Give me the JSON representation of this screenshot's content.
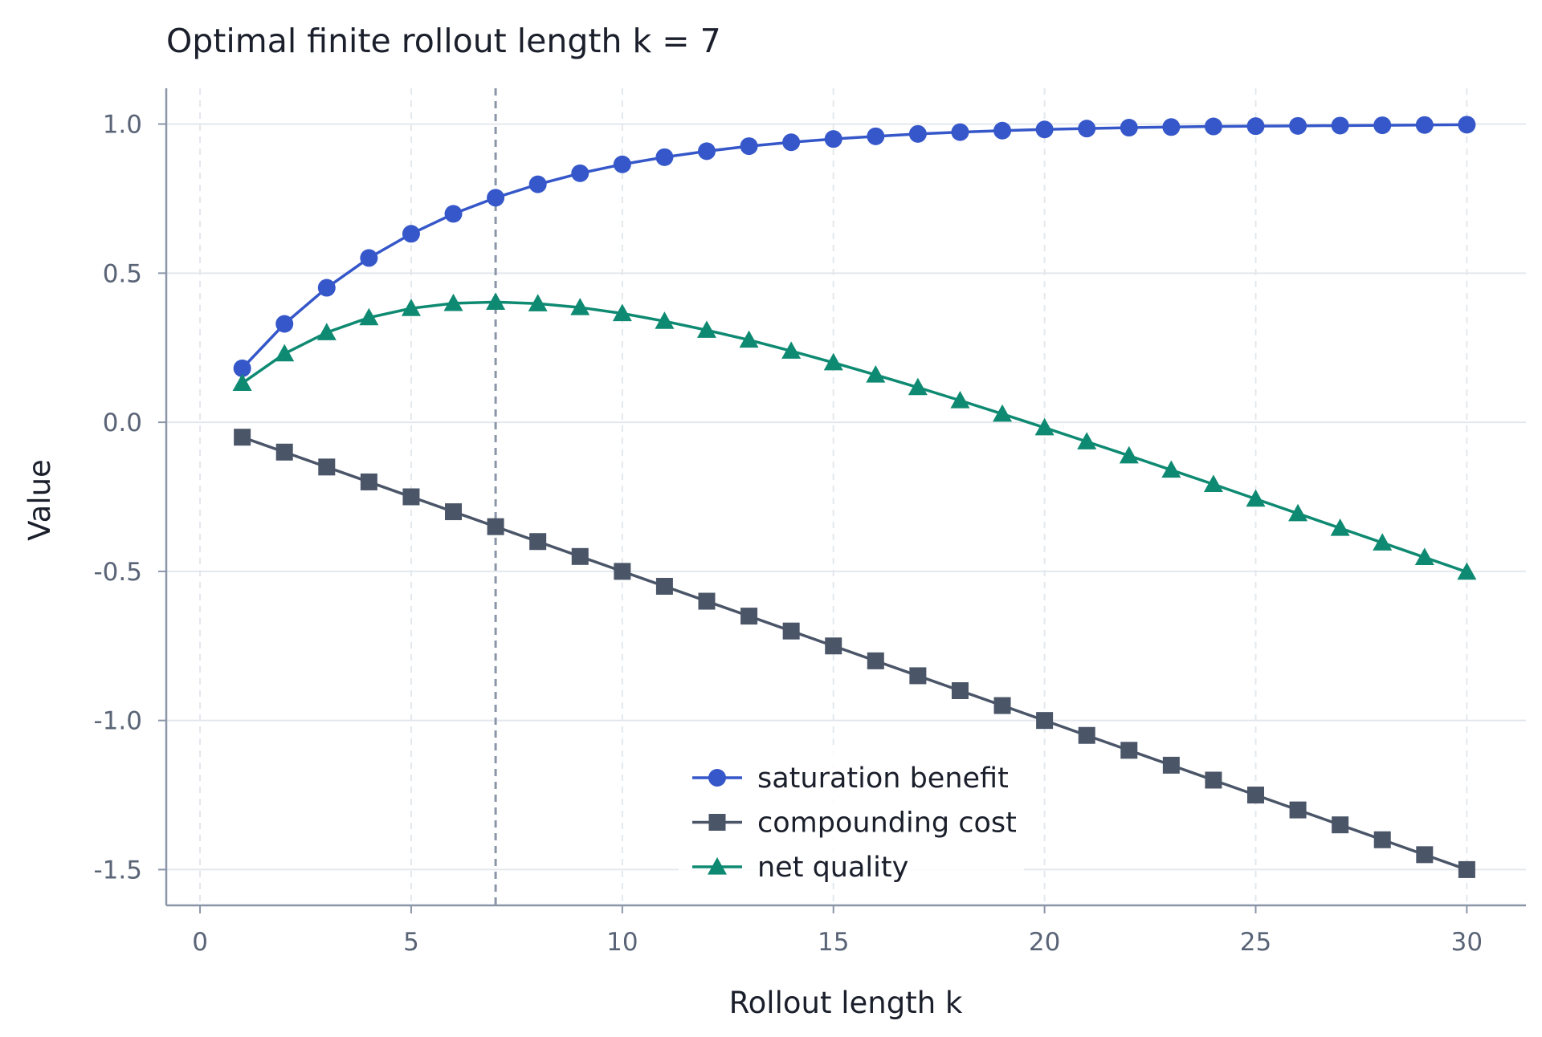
{
  "chart_data": {
    "type": "line",
    "title": "Optimal finite rollout length k = 7",
    "xlabel": "Rollout length k",
    "ylabel": "Value",
    "xlim": [
      -0.8,
      31.4
    ],
    "ylim": [
      -1.62,
      1.12
    ],
    "x_ticks": [
      0,
      5,
      10,
      15,
      20,
      25,
      30
    ],
    "y_ticks": [
      1.0,
      0.5,
      0.0,
      -0.5,
      -1.0,
      -1.5
    ],
    "x_tick_labels": [
      "0",
      "5",
      "10",
      "15",
      "20",
      "25",
      "30"
    ],
    "y_tick_labels": [
      "1.0",
      "0.5",
      "0.0",
      "-0.5",
      "-1.0",
      "-1.5"
    ],
    "grid": true,
    "legend_position": "bottom-center",
    "optimal_k": 7,
    "x": [
      1,
      2,
      3,
      4,
      5,
      6,
      7,
      8,
      9,
      10,
      11,
      12,
      13,
      14,
      15,
      16,
      17,
      18,
      19,
      20,
      21,
      22,
      23,
      24,
      25,
      26,
      27,
      28,
      29,
      30
    ],
    "series": [
      {
        "name": "saturation benefit",
        "marker": "circle",
        "color": "#3557c9",
        "values": [
          0.181,
          0.33,
          0.451,
          0.551,
          0.632,
          0.699,
          0.753,
          0.798,
          0.835,
          0.865,
          0.889,
          0.909,
          0.926,
          0.939,
          0.95,
          0.959,
          0.967,
          0.973,
          0.978,
          0.982,
          0.985,
          0.988,
          0.99,
          0.992,
          0.993,
          0.994,
          0.995,
          0.996,
          0.997,
          0.998
        ]
      },
      {
        "name": "compounding cost",
        "marker": "square",
        "color": "#4a5568",
        "values": [
          -0.05,
          -0.1,
          -0.15,
          -0.2,
          -0.25,
          -0.3,
          -0.35,
          -0.4,
          -0.45,
          -0.5,
          -0.55,
          -0.6,
          -0.65,
          -0.7,
          -0.75,
          -0.8,
          -0.85,
          -0.9,
          -0.95,
          -1.0,
          -1.05,
          -1.1,
          -1.15,
          -1.2,
          -1.25,
          -1.3,
          -1.35,
          -1.4,
          -1.45,
          -1.5
        ]
      },
      {
        "name": "net quality",
        "marker": "triangle",
        "color": "#0f8a72",
        "values": [
          0.131,
          0.23,
          0.301,
          0.351,
          0.382,
          0.399,
          0.403,
          0.398,
          0.385,
          0.365,
          0.339,
          0.309,
          0.276,
          0.239,
          0.2,
          0.159,
          0.117,
          0.073,
          0.028,
          -0.018,
          -0.065,
          -0.112,
          -0.16,
          -0.208,
          -0.257,
          -0.306,
          -0.355,
          -0.404,
          -0.453,
          -0.502
        ]
      }
    ]
  }
}
